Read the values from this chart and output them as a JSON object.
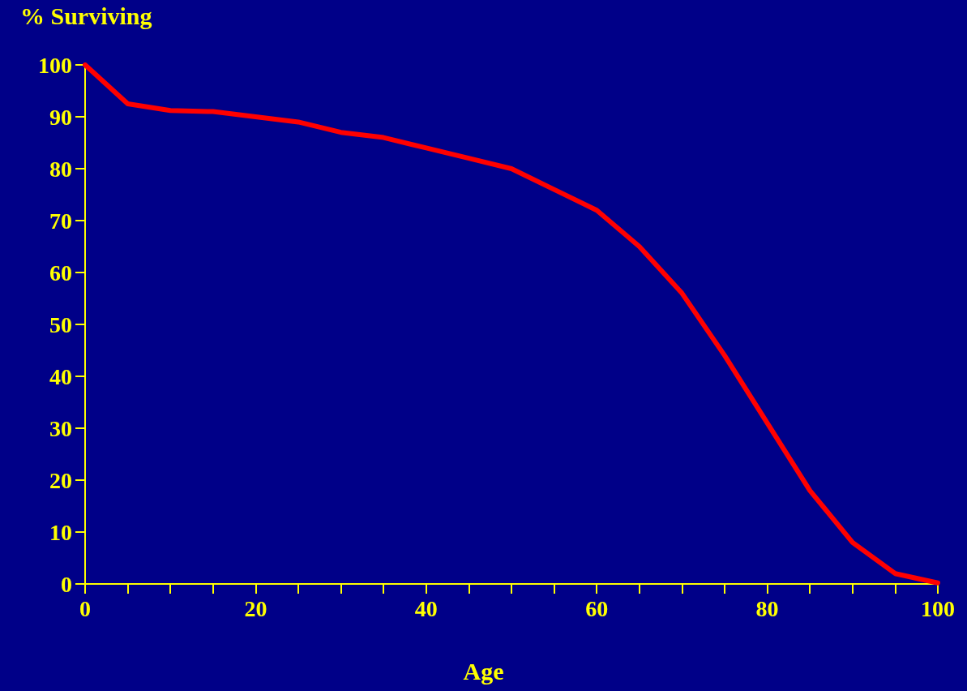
{
  "chart_data": {
    "type": "line",
    "title": "% Surviving",
    "xlabel": "Age",
    "x": [
      0,
      5,
      10,
      15,
      20,
      25,
      30,
      35,
      40,
      45,
      50,
      55,
      60,
      65,
      70,
      75,
      80,
      85,
      90,
      95,
      100
    ],
    "series": [
      {
        "color": "#ff0000",
        "values": [
          100,
          92.5,
          91.2,
          91,
          90,
          89,
          87,
          86,
          84,
          82,
          80,
          76,
          72,
          65,
          56,
          44,
          31,
          18,
          8,
          2,
          0.2
        ]
      }
    ],
    "xlim": [
      0,
      100
    ],
    "xticks": [
      0,
      {
        "value": 5,
        "label": null
      },
      {
        "value": 10,
        "label": null
      },
      {
        "value": 15,
        "label": null
      },
      20,
      {
        "value": 25,
        "label": null
      },
      {
        "value": 30,
        "label": null
      },
      {
        "value": 35,
        "label": null
      },
      40,
      {
        "value": 45,
        "label": null
      },
      {
        "value": 50,
        "label": null
      },
      {
        "value": 55,
        "label": null
      },
      60,
      {
        "value": 65,
        "label": null
      },
      {
        "value": 70,
        "label": null
      },
      {
        "value": 75,
        "label": null
      },
      80,
      {
        "value": 85,
        "label": null
      },
      {
        "value": 90,
        "label": null
      },
      {
        "value": 95,
        "label": null
      },
      100
    ],
    "ylim": [
      0,
      100
    ],
    "yticks": [
      0,
      10,
      20,
      30,
      40,
      50,
      60,
      70,
      80,
      90,
      100
    ],
    "marker": "none",
    "line_style": "solid"
  }
}
